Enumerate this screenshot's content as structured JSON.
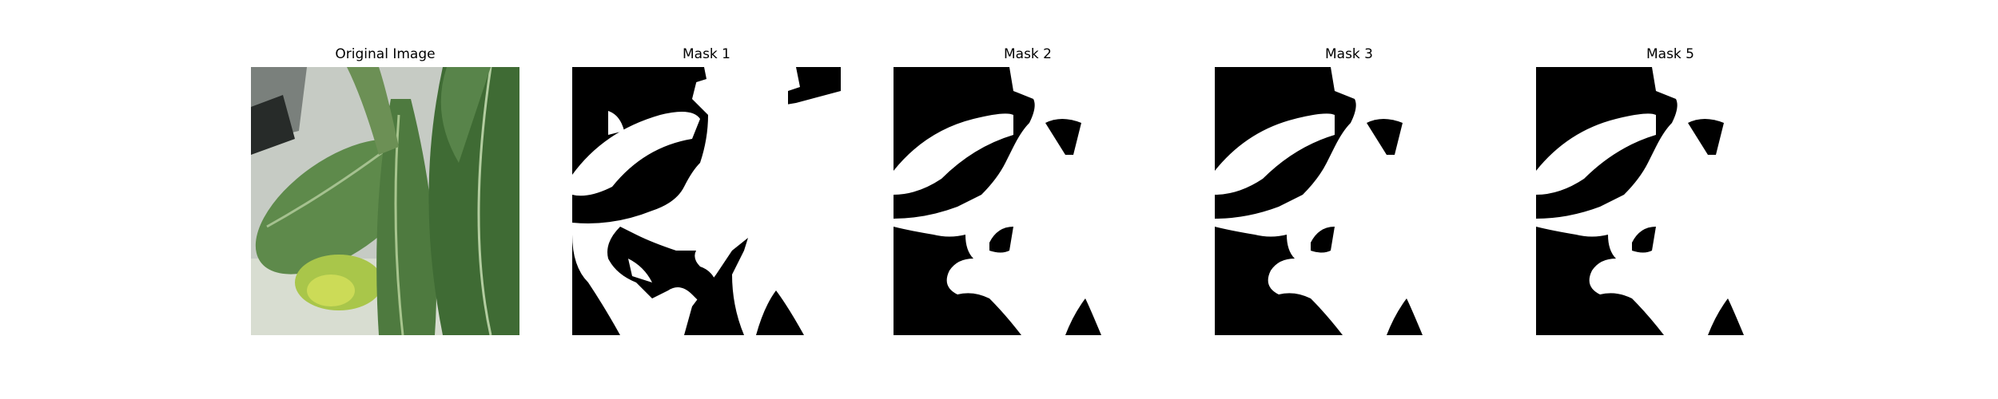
{
  "figure": {
    "panels": [
      {
        "title": "Original Image",
        "kind": "photo"
      },
      {
        "title": "Mask 1",
        "kind": "mask"
      },
      {
        "title": "Mask 2",
        "kind": "mask"
      },
      {
        "title": "Mask 3",
        "kind": "mask"
      },
      {
        "title": "Mask 5",
        "kind": "mask"
      }
    ]
  },
  "colors": {
    "mask_foreground": "#ffffff",
    "mask_background": "#000000",
    "leaf_dark": "#3f6b34",
    "leaf_mid": "#5e8a4b",
    "leaf_light": "#9ac060",
    "background_grey": "#c9cfc6"
  }
}
